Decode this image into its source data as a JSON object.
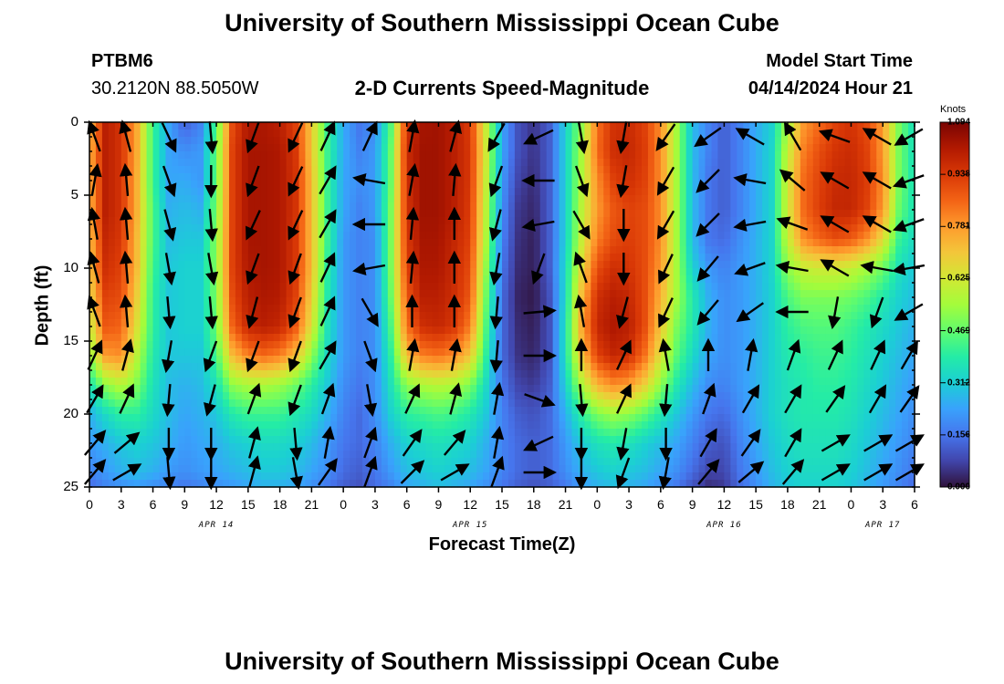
{
  "header": {
    "title_top": "University of Southern Mississippi Ocean Cube",
    "title_bottom": "University of Southern Mississippi Ocean Cube",
    "station": "PTBM6",
    "coords": "30.2120N  88.5050W",
    "plot_title": "2-D Currents Speed-Magnitude",
    "model_label": "Model Start Time",
    "model_time": "04/14/2024 Hour 21"
  },
  "colorbar": {
    "units": "Knots",
    "labels": [
      "1.094",
      "0.938",
      "0.781",
      "0.625",
      "0.469",
      "0.312",
      "0.156",
      "0.000"
    ],
    "colors": [
      "#30123b",
      "#4145ab",
      "#4675ed",
      "#39a2fc",
      "#1bcfd4",
      "#24eca6",
      "#61fc6c",
      "#a4fc3b",
      "#d1e834",
      "#f3c63a",
      "#fe9b2d",
      "#f36315",
      "#d93806",
      "#b11901",
      "#7a0402"
    ]
  },
  "chart_data": {
    "type": "heatmap",
    "title": "2-D Currents Speed-Magnitude",
    "xlabel": "Forecast Time(Z)",
    "ylabel": "Depth (ft)",
    "x_range_hours": [
      0,
      78
    ],
    "y_range": [
      0,
      25
    ],
    "y_inverted": true,
    "x_tick_labels": [
      "0",
      "3",
      "6",
      "9",
      "12",
      "15",
      "18",
      "21",
      "0",
      "3",
      "6",
      "9",
      "12",
      "15",
      "18",
      "21",
      "0",
      "3",
      "6",
      "9",
      "12",
      "15",
      "18",
      "21",
      "0",
      "3",
      "6"
    ],
    "y_tick_labels": [
      "0",
      "5",
      "10",
      "15",
      "20",
      "25"
    ],
    "day_labels": [
      {
        "label": "APR 14",
        "hour": 12
      },
      {
        "label": "APR 15",
        "hour": 36
      },
      {
        "label": "APR 16",
        "hour": 60
      },
      {
        "label": "APR 17",
        "hour": 75
      }
    ],
    "value_range": [
      0,
      1.094
    ],
    "units": "Knots",
    "depths_ft": [
      0,
      2,
      4,
      6,
      8,
      10,
      12,
      14,
      16,
      18,
      20,
      22,
      24,
      25
    ],
    "times_hr": [
      0,
      1.5,
      3,
      4.5,
      6,
      7.5,
      9,
      10.5,
      12,
      13.5,
      15,
      16.5,
      18,
      19.5,
      21,
      22.5,
      24,
      25.5,
      27,
      28.5,
      30,
      31.5,
      33,
      34.5,
      36,
      37.5,
      39,
      40.5,
      42,
      43.5,
      45,
      46.5,
      48,
      49.5,
      51,
      52.5,
      54,
      55.5,
      57,
      58.5,
      60,
      61.5,
      63,
      64.5,
      66,
      67.5,
      69,
      70.5,
      72,
      73.5,
      75,
      76.5,
      78
    ],
    "speed_knots": [
      [
        0.72,
        1.0,
        0.95,
        0.75,
        0.42,
        0.24,
        0.12,
        0.18,
        0.45,
        0.9,
        1.02,
        1.02,
        1.0,
        0.92,
        0.7,
        0.42,
        0.25,
        0.16,
        0.2,
        0.45,
        0.95,
        1.03,
        1.04,
        1.0,
        0.93,
        0.6,
        0.24,
        0.1,
        0.05,
        0.12,
        0.32,
        0.52,
        0.84,
        0.95,
        0.97,
        0.92,
        0.8,
        0.55,
        0.28,
        0.18,
        0.12,
        0.18,
        0.25,
        0.32,
        0.55,
        0.78,
        0.85,
        0.92,
        0.95,
        0.9,
        0.78,
        0.5,
        0.35
      ],
      [
        0.74,
        1.0,
        0.95,
        0.75,
        0.42,
        0.24,
        0.2,
        0.22,
        0.48,
        0.92,
        1.03,
        1.03,
        1.02,
        0.94,
        0.7,
        0.42,
        0.25,
        0.18,
        0.22,
        0.48,
        0.97,
        1.04,
        1.04,
        1.0,
        0.94,
        0.62,
        0.24,
        0.1,
        0.05,
        0.12,
        0.32,
        0.55,
        0.85,
        0.96,
        0.98,
        0.93,
        0.8,
        0.55,
        0.28,
        0.18,
        0.12,
        0.18,
        0.25,
        0.33,
        0.6,
        0.82,
        0.9,
        0.95,
        0.97,
        0.92,
        0.78,
        0.5,
        0.35
      ],
      [
        0.74,
        1.0,
        0.95,
        0.74,
        0.42,
        0.24,
        0.25,
        0.22,
        0.48,
        0.92,
        1.03,
        1.03,
        1.02,
        0.95,
        0.72,
        0.42,
        0.24,
        0.2,
        0.22,
        0.48,
        0.96,
        1.04,
        1.04,
        1.0,
        0.94,
        0.6,
        0.22,
        0.08,
        0.04,
        0.12,
        0.32,
        0.56,
        0.8,
        0.92,
        0.96,
        0.92,
        0.8,
        0.55,
        0.28,
        0.16,
        0.12,
        0.18,
        0.25,
        0.33,
        0.62,
        0.85,
        0.92,
        0.97,
        0.98,
        0.93,
        0.8,
        0.5,
        0.36
      ],
      [
        0.74,
        1.0,
        0.95,
        0.74,
        0.44,
        0.26,
        0.28,
        0.26,
        0.5,
        0.92,
        1.03,
        1.03,
        1.02,
        0.95,
        0.72,
        0.42,
        0.24,
        0.18,
        0.22,
        0.5,
        0.95,
        1.04,
        1.04,
        1.0,
        0.93,
        0.58,
        0.2,
        0.06,
        0.03,
        0.12,
        0.32,
        0.58,
        0.78,
        0.88,
        0.92,
        0.9,
        0.8,
        0.55,
        0.28,
        0.16,
        0.12,
        0.18,
        0.25,
        0.33,
        0.62,
        0.85,
        0.93,
        0.98,
        0.98,
        0.92,
        0.78,
        0.48,
        0.36
      ],
      [
        0.72,
        0.98,
        0.94,
        0.72,
        0.44,
        0.28,
        0.3,
        0.3,
        0.52,
        0.92,
        1.03,
        1.03,
        1.02,
        0.94,
        0.72,
        0.42,
        0.22,
        0.18,
        0.2,
        0.5,
        0.94,
        1.03,
        1.03,
        0.98,
        0.92,
        0.56,
        0.18,
        0.05,
        0.02,
        0.12,
        0.32,
        0.6,
        0.82,
        0.9,
        0.93,
        0.9,
        0.8,
        0.55,
        0.28,
        0.16,
        0.14,
        0.2,
        0.26,
        0.33,
        0.6,
        0.8,
        0.86,
        0.9,
        0.88,
        0.8,
        0.66,
        0.42,
        0.34
      ],
      [
        0.7,
        0.96,
        0.92,
        0.72,
        0.42,
        0.3,
        0.32,
        0.32,
        0.52,
        0.92,
        1.02,
        1.03,
        1.02,
        0.94,
        0.72,
        0.4,
        0.22,
        0.18,
        0.2,
        0.5,
        0.92,
        1.02,
        1.02,
        0.97,
        0.9,
        0.52,
        0.16,
        0.04,
        0.02,
        0.12,
        0.34,
        0.65,
        0.9,
        0.96,
        0.95,
        0.9,
        0.78,
        0.55,
        0.32,
        0.22,
        0.18,
        0.22,
        0.26,
        0.33,
        0.52,
        0.6,
        0.62,
        0.62,
        0.6,
        0.55,
        0.48,
        0.36,
        0.3
      ],
      [
        0.66,
        0.92,
        0.9,
        0.68,
        0.4,
        0.3,
        0.32,
        0.32,
        0.5,
        0.9,
        1.0,
        1.02,
        1.01,
        0.92,
        0.68,
        0.38,
        0.22,
        0.18,
        0.2,
        0.48,
        0.88,
        1.0,
        1.0,
        0.96,
        0.88,
        0.48,
        0.14,
        0.03,
        0.01,
        0.1,
        0.34,
        0.72,
        0.96,
        1.0,
        0.98,
        0.9,
        0.74,
        0.55,
        0.38,
        0.26,
        0.2,
        0.22,
        0.26,
        0.32,
        0.44,
        0.5,
        0.5,
        0.5,
        0.48,
        0.44,
        0.38,
        0.32,
        0.28
      ],
      [
        0.6,
        0.88,
        0.86,
        0.64,
        0.4,
        0.3,
        0.32,
        0.32,
        0.48,
        0.86,
        0.98,
        1.0,
        0.98,
        0.88,
        0.64,
        0.36,
        0.22,
        0.18,
        0.2,
        0.44,
        0.84,
        0.96,
        0.98,
        0.94,
        0.82,
        0.44,
        0.14,
        0.04,
        0.02,
        0.1,
        0.36,
        0.75,
        0.98,
        1.02,
        1.0,
        0.9,
        0.7,
        0.5,
        0.38,
        0.26,
        0.2,
        0.22,
        0.26,
        0.32,
        0.4,
        0.44,
        0.45,
        0.45,
        0.42,
        0.38,
        0.34,
        0.3,
        0.26
      ],
      [
        0.52,
        0.78,
        0.8,
        0.58,
        0.38,
        0.3,
        0.3,
        0.3,
        0.44,
        0.72,
        0.82,
        0.85,
        0.82,
        0.72,
        0.52,
        0.34,
        0.22,
        0.18,
        0.2,
        0.4,
        0.72,
        0.82,
        0.84,
        0.8,
        0.7,
        0.4,
        0.14,
        0.05,
        0.03,
        0.1,
        0.36,
        0.7,
        0.92,
        0.98,
        0.96,
        0.84,
        0.64,
        0.46,
        0.34,
        0.24,
        0.2,
        0.22,
        0.26,
        0.32,
        0.38,
        0.4,
        0.42,
        0.42,
        0.4,
        0.36,
        0.32,
        0.28,
        0.24
      ],
      [
        0.36,
        0.52,
        0.58,
        0.5,
        0.36,
        0.28,
        0.26,
        0.28,
        0.36,
        0.52,
        0.56,
        0.56,
        0.54,
        0.48,
        0.4,
        0.3,
        0.2,
        0.16,
        0.2,
        0.36,
        0.52,
        0.56,
        0.58,
        0.56,
        0.5,
        0.34,
        0.16,
        0.08,
        0.06,
        0.12,
        0.32,
        0.56,
        0.74,
        0.8,
        0.78,
        0.68,
        0.52,
        0.38,
        0.28,
        0.2,
        0.18,
        0.22,
        0.26,
        0.32,
        0.36,
        0.38,
        0.4,
        0.4,
        0.38,
        0.34,
        0.3,
        0.26,
        0.22
      ],
      [
        0.26,
        0.34,
        0.4,
        0.4,
        0.34,
        0.28,
        0.24,
        0.26,
        0.3,
        0.38,
        0.42,
        0.42,
        0.42,
        0.38,
        0.34,
        0.26,
        0.18,
        0.14,
        0.2,
        0.32,
        0.4,
        0.42,
        0.44,
        0.42,
        0.38,
        0.3,
        0.18,
        0.12,
        0.1,
        0.14,
        0.26,
        0.4,
        0.5,
        0.54,
        0.52,
        0.46,
        0.38,
        0.3,
        0.22,
        0.16,
        0.14,
        0.2,
        0.26,
        0.32,
        0.36,
        0.38,
        0.38,
        0.38,
        0.36,
        0.32,
        0.28,
        0.24,
        0.2
      ],
      [
        0.22,
        0.26,
        0.3,
        0.32,
        0.3,
        0.26,
        0.22,
        0.24,
        0.26,
        0.3,
        0.32,
        0.34,
        0.34,
        0.32,
        0.28,
        0.22,
        0.16,
        0.14,
        0.18,
        0.26,
        0.32,
        0.34,
        0.36,
        0.34,
        0.32,
        0.26,
        0.18,
        0.14,
        0.12,
        0.14,
        0.22,
        0.3,
        0.36,
        0.38,
        0.36,
        0.32,
        0.28,
        0.24,
        0.18,
        0.12,
        0.1,
        0.18,
        0.24,
        0.3,
        0.34,
        0.36,
        0.36,
        0.36,
        0.34,
        0.3,
        0.26,
        0.22,
        0.18
      ],
      [
        0.18,
        0.22,
        0.26,
        0.28,
        0.26,
        0.22,
        0.2,
        0.22,
        0.24,
        0.26,
        0.28,
        0.3,
        0.3,
        0.28,
        0.24,
        0.2,
        0.14,
        0.12,
        0.16,
        0.22,
        0.28,
        0.3,
        0.32,
        0.3,
        0.28,
        0.24,
        0.18,
        0.14,
        0.12,
        0.14,
        0.2,
        0.26,
        0.3,
        0.32,
        0.3,
        0.28,
        0.24,
        0.2,
        0.14,
        0.08,
        0.08,
        0.16,
        0.22,
        0.28,
        0.32,
        0.34,
        0.34,
        0.34,
        0.32,
        0.28,
        0.24,
        0.2,
        0.16
      ],
      [
        0.14,
        0.18,
        0.2,
        0.22,
        0.2,
        0.18,
        0.16,
        0.18,
        0.2,
        0.22,
        0.24,
        0.26,
        0.26,
        0.24,
        0.2,
        0.16,
        0.12,
        0.1,
        0.14,
        0.18,
        0.24,
        0.26,
        0.28,
        0.26,
        0.24,
        0.2,
        0.16,
        0.12,
        0.1,
        0.12,
        0.16,
        0.22,
        0.26,
        0.28,
        0.26,
        0.24,
        0.2,
        0.16,
        0.1,
        0.04,
        0.06,
        0.14,
        0.2,
        0.26,
        0.3,
        0.32,
        0.32,
        0.32,
        0.3,
        0.26,
        0.22,
        0.18,
        0.14
      ]
    ],
    "vectors": {
      "times_hr": [
        0.5,
        3.5,
        7.5,
        11.5,
        15.5,
        19.5,
        22.5,
        26.5,
        30.5,
        34.5,
        38.5,
        42.5,
        46.5,
        50.5,
        54.5,
        58.5,
        62.5,
        66.5,
        70.5,
        74.5,
        77.5
      ],
      "depths_ft": [
        1,
        4,
        7,
        10,
        13,
        16,
        19,
        22,
        24
      ],
      "direction_deg": [
        [
          340,
          345,
          155,
          175,
          200,
          205,
          25,
          25,
          10,
          15,
          210,
          245,
          170,
          190,
          215,
          235,
          300,
          330,
          290,
          300,
          240
        ],
        [
          10,
          355,
          160,
          180,
          200,
          205,
          30,
          280,
          10,
          5,
          200,
          270,
          160,
          190,
          210,
          225,
          280,
          310,
          300,
          300,
          250
        ],
        [
          350,
          355,
          165,
          175,
          205,
          205,
          30,
          270,
          5,
          0,
          195,
          260,
          150,
          180,
          210,
          225,
          260,
          290,
          300,
          300,
          250
        ],
        [
          345,
          355,
          170,
          170,
          200,
          200,
          25,
          260,
          5,
          0,
          190,
          200,
          340,
          180,
          205,
          220,
          250,
          280,
          300,
          280,
          260
        ],
        [
          340,
          355,
          175,
          175,
          195,
          200,
          25,
          150,
          0,
          0,
          185,
          85,
          350,
          195,
          205,
          220,
          235,
          270,
          190,
          200,
          240
        ],
        [
          25,
          15,
          190,
          200,
          200,
          200,
          30,
          160,
          10,
          10,
          185,
          90,
          360,
          25,
          350,
          360,
          10,
          20,
          25,
          25,
          30
        ],
        [
          30,
          25,
          185,
          195,
          20,
          200,
          20,
          170,
          25,
          15,
          10,
          110,
          175,
          25,
          185,
          20,
          30,
          30,
          35,
          30,
          35
        ],
        [
          40,
          50,
          180,
          180,
          15,
          175,
          10,
          20,
          35,
          40,
          10,
          245,
          180,
          190,
          180,
          30,
          35,
          30,
          60,
          60,
          60
        ],
        [
          40,
          60,
          175,
          180,
          15,
          170,
          35,
          20,
          45,
          60,
          20,
          90,
          180,
          200,
          190,
          40,
          50,
          40,
          60,
          60,
          60
        ]
      ],
      "arrow_length_knots_scaled": 0.6
    }
  }
}
